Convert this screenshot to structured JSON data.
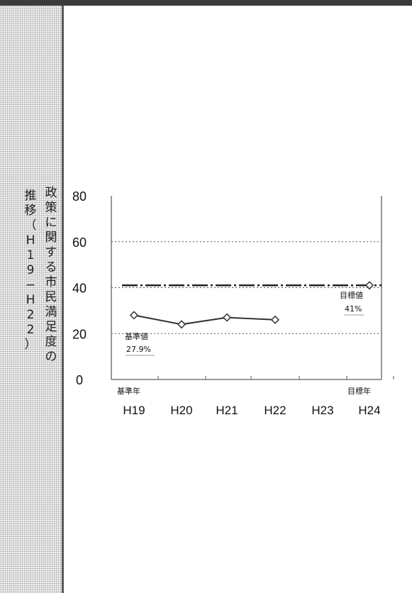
{
  "side_label": {
    "line1": "政策に関する市民満足度の",
    "line2": "推移（H19−H22）"
  },
  "chart_data": {
    "type": "line",
    "title": "",
    "xlabel": "",
    "ylabel": "",
    "categories": [
      "H19",
      "H20",
      "H21",
      "H22",
      "H23",
      "H24"
    ],
    "ylim": [
      0,
      80
    ],
    "yticks": [
      0,
      20,
      40,
      60,
      80
    ],
    "grid": "dotted horizontal at 20, 40, 60",
    "series": [
      {
        "values": [
          28,
          24,
          27,
          26,
          null,
          null
        ],
        "color": "#333333"
      },
      {
        "values": [
          null,
          null,
          null,
          null,
          null,
          41
        ],
        "color": "#333333"
      }
    ],
    "target_line": {
      "value": 41,
      "style": "dash-dot"
    },
    "annotations": {
      "base_year": "基準年",
      "target_year": "目標年",
      "base_value_label": "基準値",
      "base_value": "27.9%",
      "target_value_label": "目標値",
      "target_value": "41%"
    }
  }
}
